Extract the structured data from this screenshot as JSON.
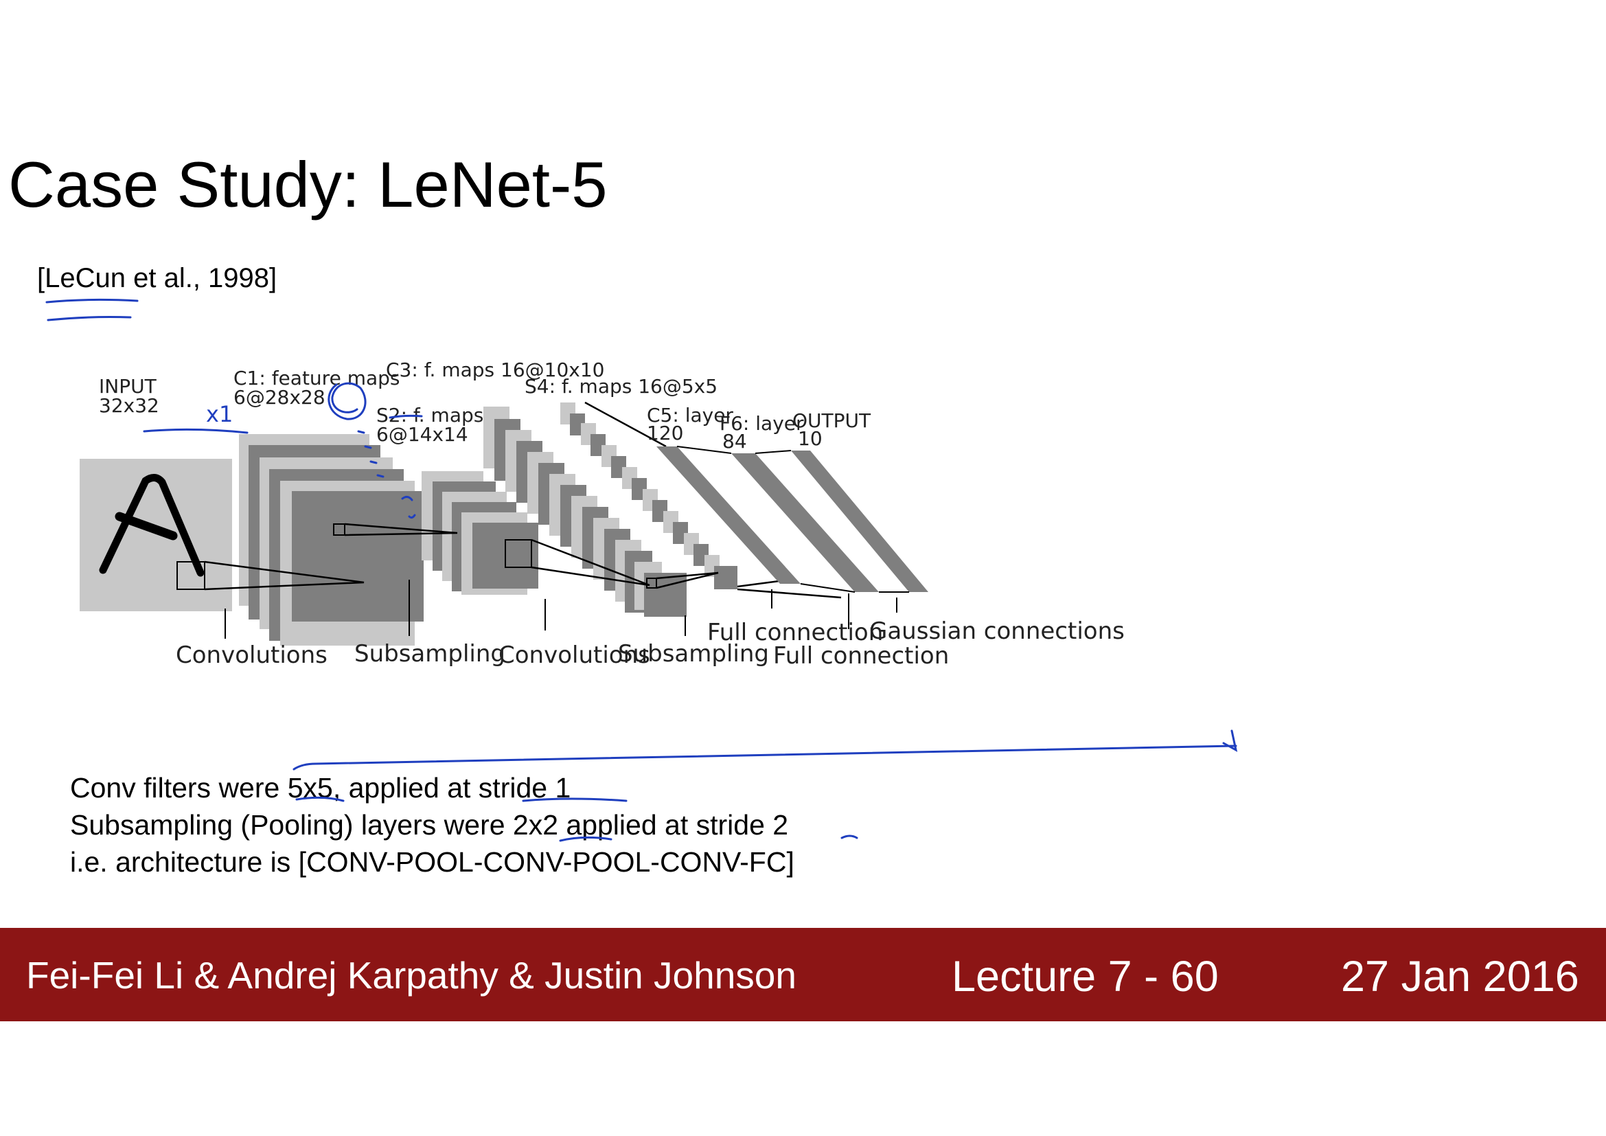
{
  "slide": {
    "title": "Case Study: LeNet-5",
    "citation": "[LeCun et al., 1998]"
  },
  "diagram": {
    "layers": {
      "input": [
        "INPUT",
        "32x32"
      ],
      "c1": [
        "C1: feature maps",
        "6@28x28"
      ],
      "s2": [
        "S2: f. maps",
        "6@14x14"
      ],
      "c3": [
        "C3: f. maps 16@10x10"
      ],
      "s4": [
        "S4: f. maps 16@5x5"
      ],
      "c5": [
        "C5: layer",
        "120"
      ],
      "f6": [
        "F6: layer",
        "84"
      ],
      "output": [
        "OUTPUT",
        "10"
      ]
    },
    "operations": {
      "conv1": "Convolutions",
      "sub1": "Subsampling",
      "conv2": "Convolutions",
      "sub2": "Subsampling",
      "full1": "Full connection",
      "full2": "Full connection",
      "gauss": "Gaussian connections"
    }
  },
  "annotations": {
    "input_note": "x1"
  },
  "notes": [
    "Conv filters were 5x5, applied at stride 1",
    "Subsampling (Pooling) layers were 2x2 applied at stride 2",
    "i.e. architecture is [CONV-POOL-CONV-POOL-CONV-FC]"
  ],
  "footer": {
    "authors": "Fei-Fei Li & Andrej Karpathy & Justin Johnson",
    "lecture": "Lecture 7 - 60",
    "date": "27 Jan 2016"
  },
  "colors": {
    "footer_bg": "#8c1515",
    "map_light": "#c8c8c8",
    "map_dark": "#7f7f7f",
    "ink": "#1f3fbf"
  }
}
